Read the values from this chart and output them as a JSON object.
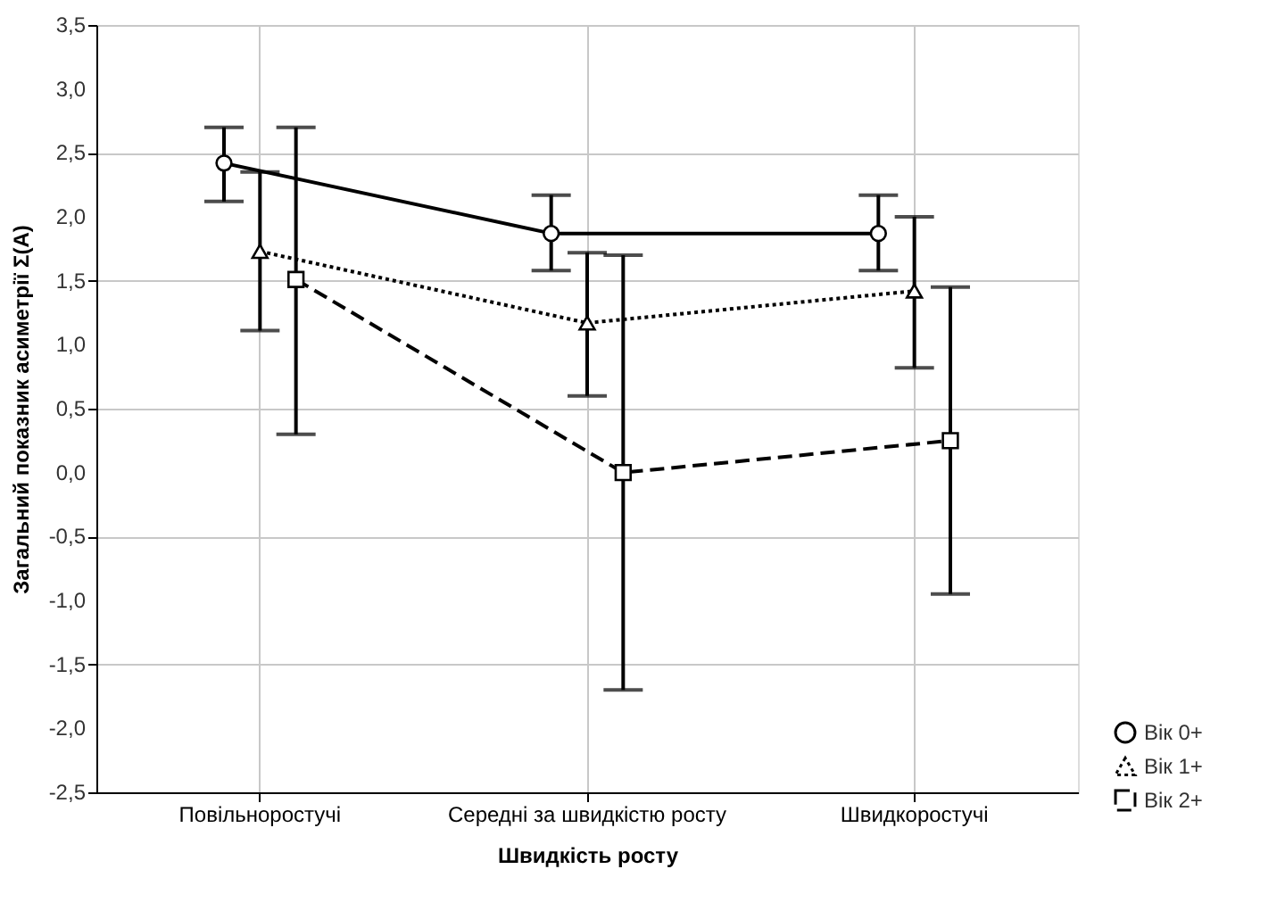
{
  "chart_data": {
    "type": "line",
    "xlabel": "Швидкість росту",
    "ylabel": "Загальний показник асиметрії Σ(A)",
    "categories": [
      "Повільноростучі",
      "Середні за швидкістю росту",
      "Швидкоростучі"
    ],
    "ylim": [
      -2.5,
      3.5
    ],
    "yticks": [
      {
        "value": -2.5,
        "label": "-2,5"
      },
      {
        "value": -2.0,
        "label": "-2,0"
      },
      {
        "value": -1.5,
        "label": "-1,5"
      },
      {
        "value": -1.0,
        "label": "-1,0"
      },
      {
        "value": -0.5,
        "label": "-0,5"
      },
      {
        "value": 0.0,
        "label": "0,0"
      },
      {
        "value": 0.5,
        "label": "0,5"
      },
      {
        "value": 1.0,
        "label": "1,0"
      },
      {
        "value": 1.5,
        "label": "1,5"
      },
      {
        "value": 2.0,
        "label": "2,0"
      },
      {
        "value": 2.5,
        "label": "2,5"
      },
      {
        "value": 3.0,
        "label": "3,0"
      },
      {
        "value": 3.5,
        "label": "3,5"
      }
    ],
    "grid": true,
    "legend": "bottom right",
    "series": [
      {
        "name": "Вік 0+",
        "color": "#000000",
        "marker": "circle",
        "line_style": "solid",
        "values": [
          2.42,
          1.87,
          1.87
        ],
        "errors": [
          [
            2.12,
            2.7
          ],
          [
            1.58,
            2.17
          ],
          [
            1.58,
            2.17
          ]
        ]
      },
      {
        "name": "Вік 1+",
        "color": "#010101",
        "marker": "triangle",
        "line_style": "dotted",
        "values": [
          1.73,
          1.17,
          1.42
        ],
        "errors": [
          [
            1.11,
            2.35
          ],
          [
            0.6,
            1.72
          ],
          [
            0.82,
            2.0
          ]
        ]
      },
      {
        "name": "Вік 2+",
        "color": "#020202",
        "marker": "square",
        "line_style": "dashed",
        "values": [
          1.51,
          0.0,
          0.25
        ],
        "errors": [
          [
            0.3,
            2.7
          ],
          [
            -1.7,
            1.7
          ],
          [
            -0.95,
            1.45
          ]
        ]
      }
    ]
  }
}
